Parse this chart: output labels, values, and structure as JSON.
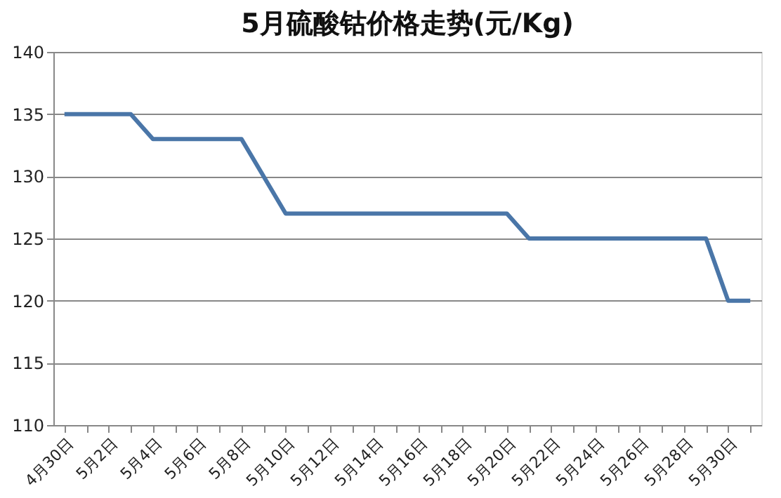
{
  "chart_data": {
    "type": "line",
    "title": "5月硫酸钴价格走势(元/Kg)",
    "categories": [
      "4月30日",
      null,
      "5月2日",
      null,
      "5月4日",
      null,
      "5月6日",
      null,
      "5月8日",
      null,
      "5月10日",
      null,
      "5月12日",
      null,
      "5月14日",
      null,
      "5月16日",
      null,
      "5月18日",
      null,
      "5月20日",
      null,
      "5月22日",
      null,
      "5月24日",
      null,
      "5月26日",
      null,
      "5月28日",
      null,
      "5月30日",
      null
    ],
    "series": [
      {
        "color": "#4a76a8",
        "values": [
          135,
          135,
          135,
          135,
          133,
          133,
          133,
          133,
          133,
          130,
          127,
          127,
          127,
          127,
          127,
          127,
          127,
          127,
          127,
          127,
          127,
          125,
          125,
          125,
          125,
          125,
          125,
          125,
          125,
          125,
          120,
          120
        ]
      }
    ],
    "ylim": [
      110,
      140
    ],
    "yticks": [
      110,
      115,
      120,
      125,
      130,
      135,
      140
    ],
    "grid": "y",
    "marker": "none",
    "line_style": "solid"
  }
}
